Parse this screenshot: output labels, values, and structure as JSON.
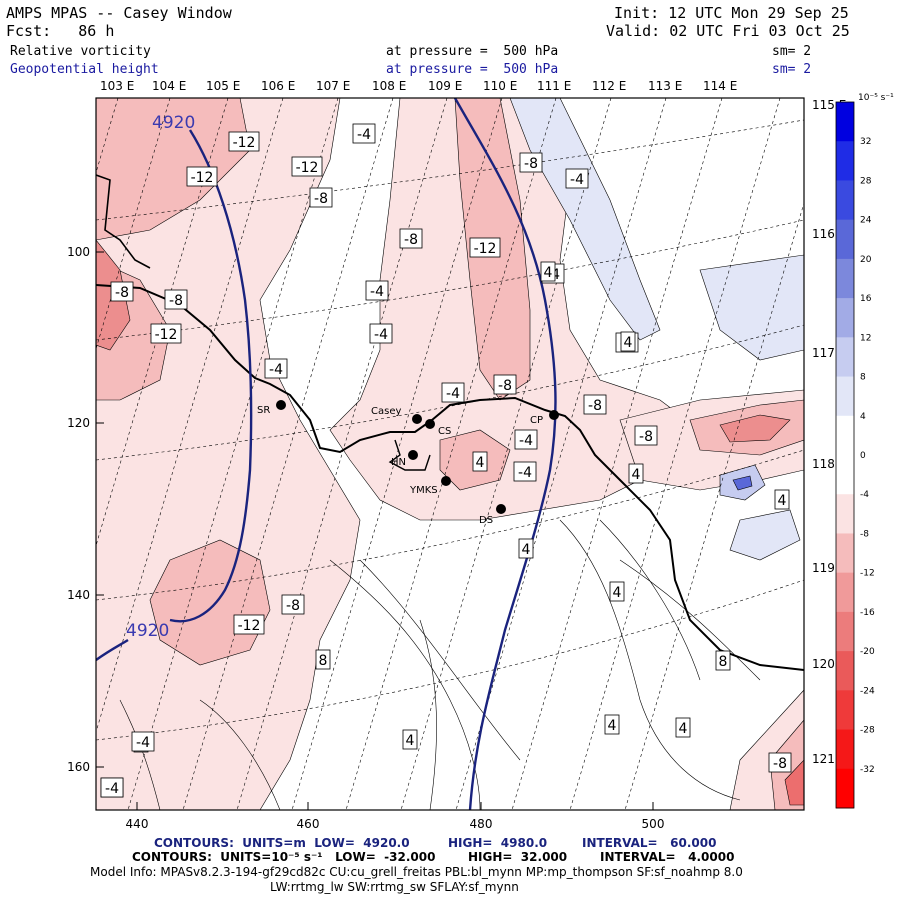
{
  "header": {
    "line1_left": "AMPS MPAS -- Casey Window",
    "line2_left": "Fcst:   86 h",
    "line1_right": "Init: 12 UTC Mon 29 Sep 25",
    "line2_right": "Valid: 02 UTC Fri 03 Oct 25",
    "field1": "Relative vorticity",
    "field1_level": "at pressure =  500 hPa",
    "field1_sm": "sm= 2",
    "field2": "Geopotential height",
    "field2_level": "at pressure =  500 hPa",
    "field2_sm": "sm= 2"
  },
  "colors": {
    "height_contour": "#1a237e",
    "blue_text": "#1a1aa0",
    "pos_vort_light": "#fbe3e3",
    "pos_vort_mid": "#f5bcbc",
    "pos_vort_dark": "#ec8e8e",
    "neg_vort_light": "#e2e6f7",
    "neg_vort_mid": "#c6ccf0",
    "neg_vort_dark": "#5a68d8"
  },
  "top_lon_labels": [
    "103 E",
    "104 E",
    "105 E",
    "106 E",
    "107 E",
    "108 E",
    "109 E",
    "110 E",
    "111 E",
    "112 E",
    "113 E",
    "114 E"
  ],
  "right_lon_labels": [
    "115 E",
    "116 E",
    "117 E",
    "118 E",
    "119 E",
    "120 E",
    "121 E"
  ],
  "left_axis_labels": [
    "100",
    "120",
    "140",
    "160"
  ],
  "bottom_axis_labels": [
    "440",
    "460",
    "480",
    "500"
  ],
  "height_labels": [
    "4920",
    "4920"
  ],
  "stations": [
    {
      "name": "SR"
    },
    {
      "name": "Casey"
    },
    {
      "name": "CS"
    },
    {
      "name": "HN"
    },
    {
      "name": "YMKS"
    },
    {
      "name": "DS"
    },
    {
      "name": "CP"
    }
  ],
  "contour_labels": [
    "-12",
    "-4",
    "-12",
    "-12",
    "-8",
    "-8",
    "-8",
    "-12",
    "-4",
    "-4",
    "-8",
    "-8",
    "-12",
    "-4",
    "-4",
    "-8",
    "-8",
    "-4",
    "-4",
    "-8",
    "-4",
    "-8",
    "-4",
    "4",
    "4",
    "4",
    "8",
    "8",
    "4",
    "4",
    "4",
    "4",
    "-8",
    "-12",
    "4",
    "-4",
    "4",
    "4",
    "4",
    "-8",
    "-4",
    "-4"
  ],
  "colorbar": {
    "units": "10⁻⁵ s⁻¹",
    "ticks": [
      "32",
      "28",
      "24",
      "20",
      "16",
      "12",
      "8",
      "4",
      "0",
      "-4",
      "-8",
      "-12",
      "-16",
      "-20",
      "-24",
      "-28",
      "-32"
    ]
  },
  "footer": {
    "line1_a": "CONTOURS:  UNITS=m  LOW=  4920.0",
    "line1_b": "HIGH=  4980.0",
    "line1_c": "INTERVAL=   60.000",
    "line2_a": "CONTOURS:  UNITS=10⁻⁵ s⁻¹   LOW=  -32.000",
    "line2_b": "HIGH=  32.000",
    "line2_c": "INTERVAL=   4.0000",
    "line3": "Model Info: MPASv8.2.3-194-gf29cd82c CU:cu_grell_freitas PBL:bl_mynn MP:mp_thompson SF:sf_noahmp 8.0",
    "line4": "LW:rrtmg_lw SW:rrtmg_sw SFLAY:sf_mynn"
  }
}
